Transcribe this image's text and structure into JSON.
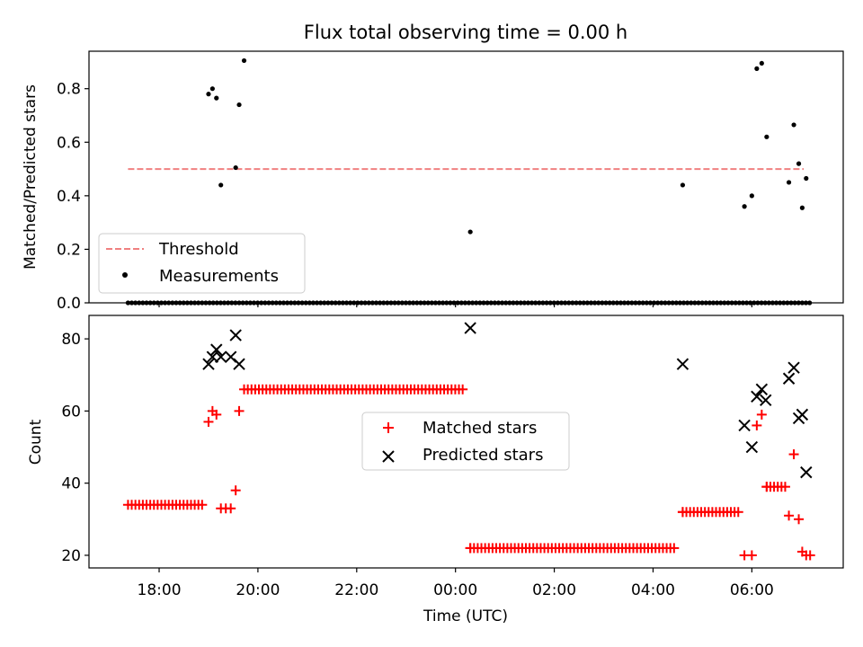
{
  "chart_data": [
    {
      "type": "scatter",
      "title": "Flux total observing time = 0.00 h",
      "xlabel": "",
      "ylabel": "Matched/Predicted stars",
      "ylim": [
        0,
        0.94
      ],
      "xlim_hours": [
        16.58,
        31.85
      ],
      "yticks": [
        "0.0",
        "0.2",
        "0.4",
        "0.6",
        "0.8"
      ],
      "ytick_values": [
        0,
        0.2,
        0.4,
        0.6,
        0.8
      ],
      "legend_position": "lower-left",
      "threshold": {
        "name": "Threshold",
        "value": 0.5,
        "x_range": [
          17.37,
          31.05
        ],
        "color": "#f08080",
        "style": "dashed"
      },
      "series": [
        {
          "name": "Measurements",
          "color": "#000000",
          "x": [
            19.0,
            19.08,
            19.16,
            19.25,
            19.55,
            19.62,
            19.72,
            24.3,
            28.6,
            29.85,
            30.0,
            30.1,
            30.2,
            30.3,
            30.75,
            30.85,
            30.95,
            31.02,
            31.1
          ],
          "y": [
            0.78,
            0.8,
            0.765,
            0.44,
            0.505,
            0.74,
            0.905,
            0.265,
            0.44,
            0.36,
            0.4,
            0.875,
            0.895,
            0.62,
            0.45,
            0.665,
            0.52,
            0.355,
            0.465
          ]
        }
      ],
      "zero_points_x_range": [
        17.37,
        31.2
      ]
    },
    {
      "type": "scatter",
      "xlabel": "Time (UTC)",
      "ylabel": "Count",
      "ylim": [
        16.5,
        86.5
      ],
      "yticks": [
        "20",
        "40",
        "60",
        "80"
      ],
      "ytick_values": [
        20,
        40,
        60,
        80
      ],
      "xticks": [
        "18:00",
        "20:00",
        "22:00",
        "00:00",
        "02:00",
        "04:00",
        "06:00"
      ],
      "xtick_hours": [
        18,
        20,
        22,
        24,
        26,
        28,
        30
      ],
      "legend_position": "center",
      "series": [
        {
          "name": "Matched stars",
          "marker": "plus",
          "color": "#ff0000",
          "x": [
            19.0,
            19.08,
            19.16,
            19.25,
            19.35,
            19.45,
            19.55,
            19.62,
            24.3,
            28.6,
            29.85,
            30.0,
            30.1,
            30.2,
            30.3,
            30.75,
            30.85,
            30.95,
            31.02,
            31.1,
            31.18
          ],
          "y": [
            57,
            60,
            59,
            33,
            33,
            33,
            38,
            60,
            22,
            32,
            20,
            20,
            56,
            59,
            39,
            31,
            48,
            30,
            21,
            20,
            20
          ],
          "runs": [
            {
              "x_range": [
                17.37,
                18.9
              ],
              "y": 34
            },
            {
              "x_range": [
                19.72,
                24.15
              ],
              "y": 66
            },
            {
              "x_range": [
                24.3,
                28.45
              ],
              "y": 22
            },
            {
              "x_range": [
                28.6,
                29.75
              ],
              "y": 32
            },
            {
              "x_range": [
                30.3,
                30.7
              ],
              "y": 39
            }
          ]
        },
        {
          "name": "Predicted stars",
          "marker": "x",
          "color": "#000000",
          "x": [
            19.0,
            19.08,
            19.16,
            19.25,
            19.45,
            19.55,
            19.62,
            24.3,
            28.6,
            29.85,
            30.0,
            30.1,
            30.2,
            30.28,
            30.75,
            30.85,
            30.95,
            31.02,
            31.1
          ],
          "y": [
            73,
            75,
            77,
            75,
            75,
            81,
            73,
            83,
            73,
            56,
            50,
            64,
            66,
            63,
            69,
            72,
            58,
            59,
            43
          ]
        }
      ]
    }
  ]
}
